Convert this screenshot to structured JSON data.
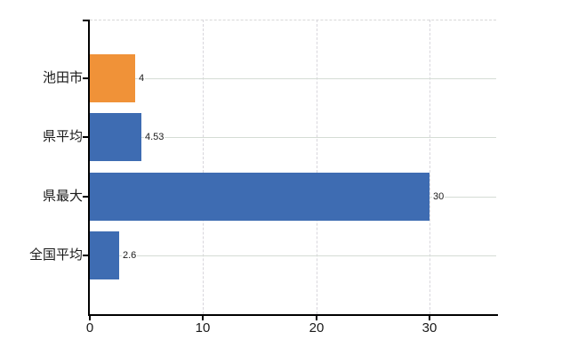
{
  "chart_data": {
    "type": "bar",
    "orientation": "horizontal",
    "title": "",
    "xlabel": "",
    "ylabel": "",
    "categories": [
      "池田市",
      "県平均",
      "県最大",
      "全国平均"
    ],
    "values": [
      4,
      4.53,
      30,
      2.6
    ],
    "value_labels": [
      "4",
      "4.53",
      "30",
      "2.6"
    ],
    "bar_colors": [
      "#F09238",
      "#3E6CB2",
      "#3E6CB2",
      "#3E6CB2"
    ],
    "x_ticks": [
      0,
      10,
      20,
      30
    ],
    "x_tick_labels": [
      "0",
      "10",
      "20",
      "30"
    ],
    "xlim": [
      0,
      35.9
    ],
    "grid": true,
    "legend": false,
    "colors": {
      "highlight_bar": "#F09238",
      "default_bar": "#3E6CB2",
      "h_gridline": "#D5DCD5",
      "v_gridline": "#D8D6DC",
      "plot_top_border": "#D8D8D8",
      "axis": "#000000",
      "text": "#1A1A1A",
      "background": "#FFFFFF"
    }
  }
}
